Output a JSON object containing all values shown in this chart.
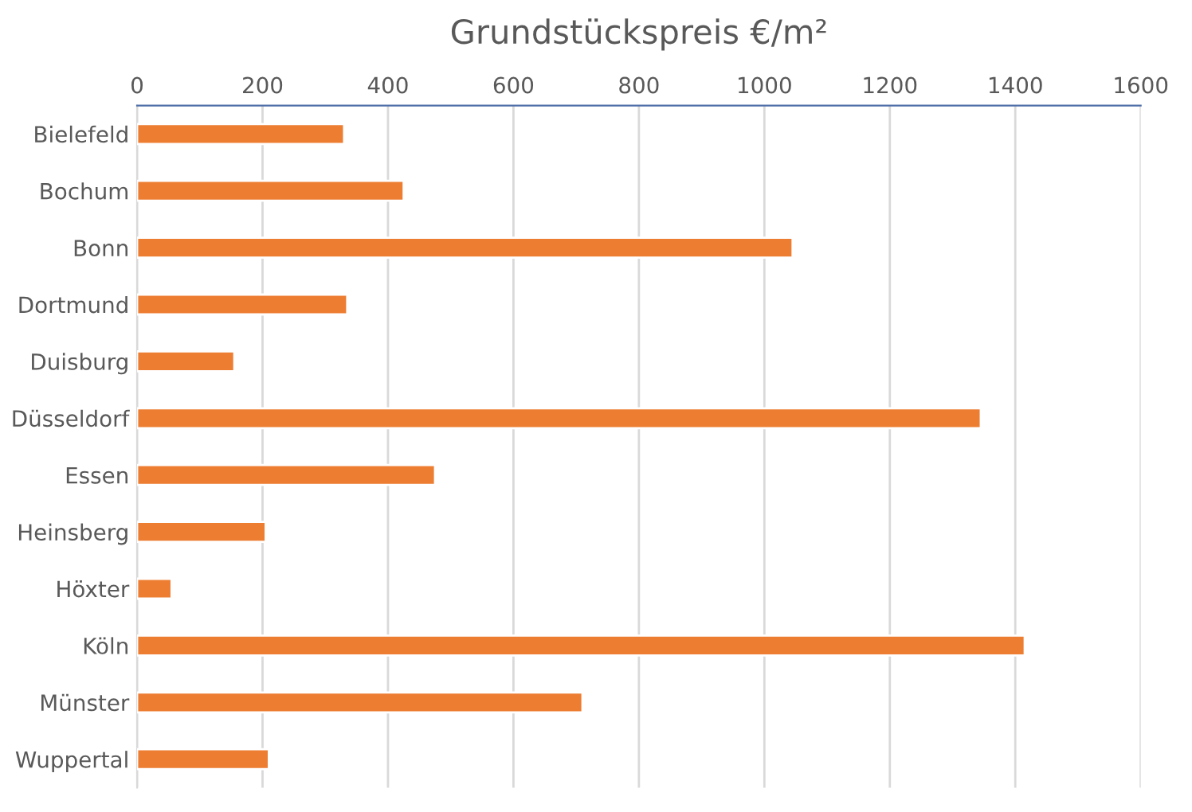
{
  "chart_data": {
    "type": "bar",
    "orientation": "horizontal",
    "title": "Grundstückspreis €/m²",
    "categories": [
      "Bielefeld",
      "Bochum",
      "Bonn",
      "Dortmund",
      "Duisburg",
      "Düsseldorf",
      "Essen",
      "Heinsberg",
      "Höxter",
      "Köln",
      "Münster",
      "Wuppertal"
    ],
    "values": [
      330,
      425,
      1045,
      335,
      155,
      1345,
      475,
      205,
      55,
      1415,
      710,
      210
    ],
    "color": "#ed7d31",
    "xlim": [
      0,
      1600
    ],
    "xticks": [
      0,
      200,
      400,
      600,
      800,
      1000,
      1200,
      1400,
      1600
    ],
    "grid": "x"
  }
}
